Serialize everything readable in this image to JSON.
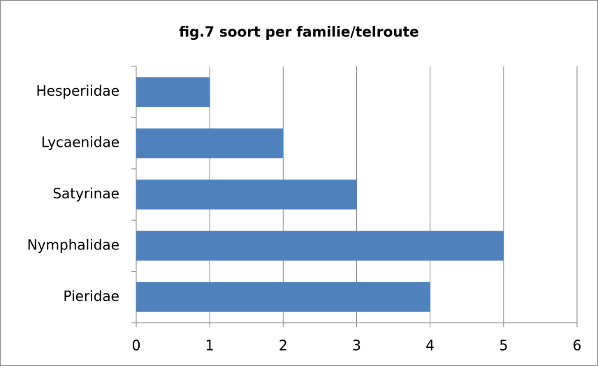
{
  "chart_data": {
    "type": "bar",
    "orientation": "horizontal",
    "title": "fig.7  soort per familie/telroute",
    "categories": [
      "Hesperiidae",
      "Lycaenidae",
      "Satyrinae",
      "Nymphalidae",
      "Pieridae"
    ],
    "values": [
      1,
      2,
      3,
      5,
      4
    ],
    "color": "#4f81bd",
    "xlim": [
      0,
      6
    ],
    "xticks": [
      0,
      1,
      2,
      3,
      4,
      5,
      6
    ],
    "grid": true
  }
}
